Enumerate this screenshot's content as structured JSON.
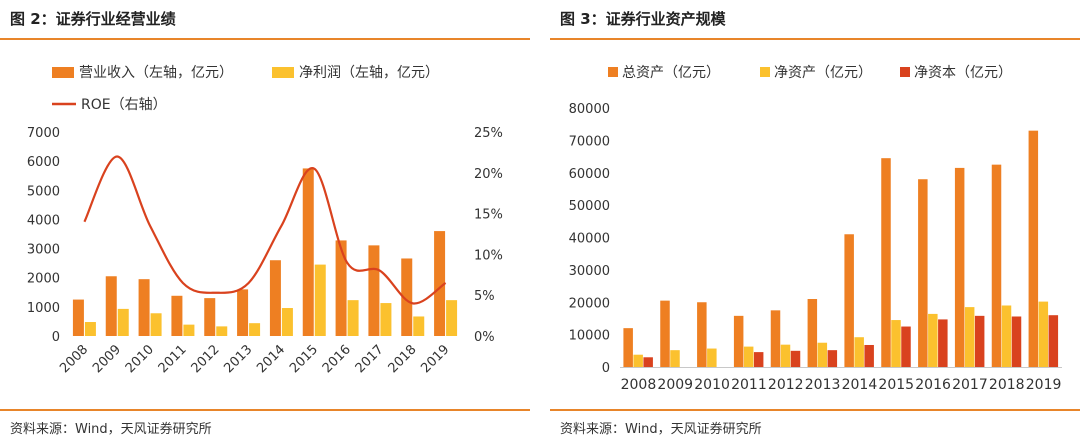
{
  "left_panel": {
    "title": "图 2：证券行业经营业绩",
    "source": "资料来源：Wind，天风证券研究所"
  },
  "right_panel": {
    "title": "图 3：证券行业资产规模",
    "source": "资料来源：Wind，天风证券研究所"
  },
  "colors": {
    "accent_rule": "#e8852a",
    "revenue": "#ee7f22",
    "profit": "#fbc12e",
    "roe": "#d9421e",
    "total_assets": "#ee7f22",
    "net_assets": "#fbc12e",
    "net_capital": "#d9421e"
  },
  "chart_data": [
    {
      "type": "bar",
      "combo_line": true,
      "categories": [
        "2008",
        "2009",
        "2010",
        "2011",
        "2012",
        "2013",
        "2014",
        "2015",
        "2016",
        "2017",
        "2018",
        "2019"
      ],
      "series": [
        {
          "name": "营业收入（左轴，亿元）",
          "axis": "left",
          "kind": "bar",
          "values": [
            1250,
            2050,
            1950,
            1380,
            1300,
            1600,
            2600,
            5750,
            3280,
            3110,
            2660,
            3600
          ]
        },
        {
          "name": "净利润（左轴，亿元）",
          "axis": "left",
          "kind": "bar",
          "values": [
            480,
            930,
            780,
            390,
            330,
            440,
            960,
            2450,
            1230,
            1130,
            670,
            1230
          ]
        },
        {
          "name": "ROE（右轴）",
          "axis": "right",
          "kind": "line",
          "values": [
            14.0,
            22.0,
            13.5,
            6.5,
            5.3,
            6.5,
            13.5,
            20.5,
            9.0,
            8.0,
            4.0,
            6.5
          ]
        }
      ],
      "left_axis": {
        "min": 0,
        "max": 7000,
        "ticks": [
          "0",
          "1000",
          "2000",
          "3000",
          "4000",
          "5000",
          "6000",
          "7000"
        ]
      },
      "right_axis": {
        "min": 0,
        "max": 25,
        "ticks": [
          "0%",
          "5%",
          "10%",
          "15%",
          "20%",
          "25%"
        ]
      },
      "legend_placement": "top-left",
      "grid": false
    },
    {
      "type": "bar",
      "categories": [
        "2008",
        "2009",
        "2010",
        "2011",
        "2012",
        "2013",
        "2014",
        "2015",
        "2016",
        "2017",
        "2018",
        "2019"
      ],
      "series": [
        {
          "name": "总资产（亿元）",
          "values": [
            12000,
            20500,
            20000,
            15800,
            17500,
            21000,
            41000,
            64500,
            58000,
            61500,
            62500,
            73000
          ]
        },
        {
          "name": "净资产（亿元）",
          "values": [
            3800,
            5200,
            5700,
            6300,
            6900,
            7500,
            9200,
            14500,
            16400,
            18500,
            19000,
            20200
          ]
        },
        {
          "name": "净资本（亿元）",
          "values": [
            3000,
            null,
            null,
            4600,
            5000,
            5200,
            6800,
            12500,
            14700,
            15800,
            15600,
            16000
          ]
        }
      ],
      "y_axis": {
        "min": 0,
        "max": 80000,
        "ticks": [
          "0",
          "10000",
          "20000",
          "30000",
          "40000",
          "50000",
          "60000",
          "70000",
          "80000"
        ]
      },
      "legend_placement": "top",
      "grid": false
    }
  ]
}
